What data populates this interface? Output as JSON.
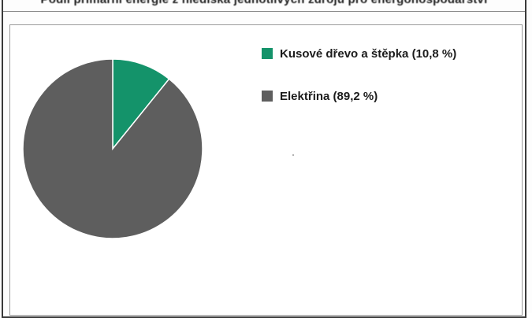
{
  "chart_data": {
    "type": "pie",
    "title": "Podíl primární energie z hlediska jednotlivých zdrojů pro energohospodářství",
    "categories": [
      "Kusové dřevo a štěpka (10,8 %)",
      "Elektřina (89,2 %)"
    ],
    "values": [
      10.8,
      89.2
    ],
    "colors": [
      "#14936a",
      "#5e5e5e"
    ],
    "legend_position": "right"
  }
}
